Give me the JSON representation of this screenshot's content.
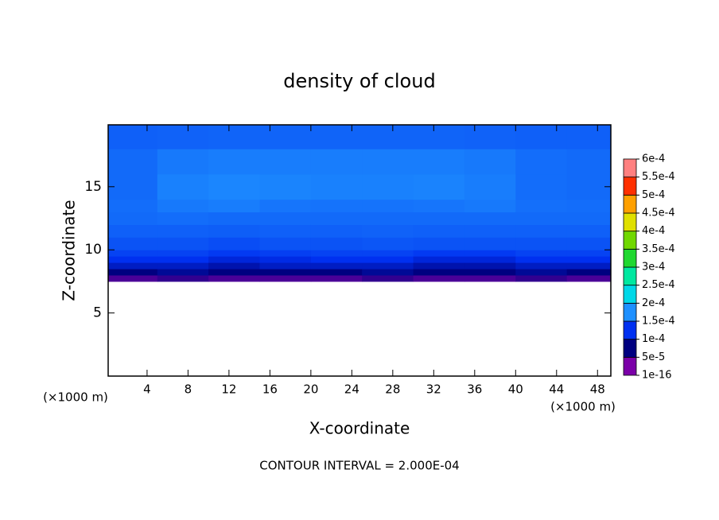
{
  "chart_data": {
    "type": "contour",
    "title": "density of cloud",
    "x_label": "X-coordinate",
    "y_label": "Z-coordinate",
    "x_unit_label": "(×1000 m)",
    "y_unit_label": "(×1000 m)",
    "annotation": "CONTOUR INTERVAL = 2.000E-04",
    "xlim": [
      0.2,
      49.3
    ],
    "ylim": [
      0,
      19.9
    ],
    "xticks": [
      4,
      8,
      12,
      16,
      20,
      24,
      28,
      32,
      36,
      40,
      44,
      48
    ],
    "yticks": [
      5,
      10,
      15
    ],
    "x_edges": [
      0,
      5,
      10,
      15,
      20,
      25,
      30,
      35,
      40,
      45,
      50
    ],
    "z_edges": [
      7.5,
      8,
      8.5,
      9,
      9.5,
      10,
      11,
      12,
      13,
      14,
      16,
      18,
      20
    ],
    "values": [
      [
        2e-05,
        3e-05,
        2e-05,
        2e-05,
        2e-05,
        3e-05,
        2e-05,
        2e-05,
        3e-05,
        2e-05
      ],
      [
        5e-05,
        6e-05,
        5e-05,
        5e-05,
        5e-05,
        6e-05,
        5e-05,
        5e-05,
        6e-05,
        5e-05
      ],
      [
        8e-05,
        8e-05,
        7e-05,
        8e-05,
        8e-05,
        8e-05,
        7e-05,
        7e-05,
        8e-05,
        8e-05
      ],
      [
        0.0001,
        0.0001,
        9e-05,
        9.5e-05,
        0.0001,
        0.0001,
        9e-05,
        9e-05,
        0.0001,
        0.0001
      ],
      [
        0.00011,
        0.00011,
        0.000105,
        0.000108,
        0.00011,
        0.00011,
        0.000105,
        0.000105,
        0.00011,
        0.00011
      ],
      [
        0.000118,
        0.000118,
        0.000115,
        0.000118,
        0.000118,
        0.00012,
        0.000118,
        0.000118,
        0.000118,
        0.000118
      ],
      [
        0.000125,
        0.000125,
        0.000124,
        0.000125,
        0.000125,
        0.000126,
        0.000125,
        0.000125,
        0.000125,
        0.000125
      ],
      [
        0.00013,
        0.000132,
        0.00013,
        0.00013,
        0.00013,
        0.00013,
        0.00013,
        0.00013,
        0.00013,
        0.00013
      ],
      [
        0.000132,
        0.000138,
        0.00014,
        0.000136,
        0.000135,
        0.000135,
        0.000136,
        0.000138,
        0.000133,
        0.000132
      ],
      [
        0.00013,
        0.000142,
        0.000145,
        0.000144,
        0.000142,
        0.000142,
        0.000143,
        0.00014,
        0.000132,
        0.00013
      ],
      [
        0.00013,
        0.000138,
        0.00014,
        0.00014,
        0.00014,
        0.00014,
        0.00014,
        0.000138,
        0.000132,
        0.00013
      ],
      [
        0.000125,
        0.000126,
        0.000127,
        0.000127,
        0.000127,
        0.000127,
        0.000127,
        0.000126,
        0.000125,
        0.000125
      ]
    ],
    "colorbar": {
      "levels": [
        {
          "value": 1e-16,
          "label": "1e-16"
        },
        {
          "value": 5e-05,
          "label": "5e-5"
        },
        {
          "value": 0.0001,
          "label": "1e-4"
        },
        {
          "value": 0.00015,
          "label": "1.5e-4"
        },
        {
          "value": 0.0002,
          "label": "2e-4"
        },
        {
          "value": 0.00025,
          "label": "2.5e-4"
        },
        {
          "value": 0.0003,
          "label": "3e-4"
        },
        {
          "value": 0.00035,
          "label": "3.5e-4"
        },
        {
          "value": 0.0004,
          "label": "4e-4"
        },
        {
          "value": 0.00045,
          "label": "4.5e-4"
        },
        {
          "value": 0.0005,
          "label": "5e-4"
        },
        {
          "value": 0.00055,
          "label": "5.5e-4"
        },
        {
          "value": 0.0006,
          "label": "6e-4"
        }
      ],
      "colors": [
        "#7b00a8",
        "#000080",
        "#0030f0",
        "#1e90ff",
        "#00d8e8",
        "#00e8a0",
        "#20d830",
        "#70d800",
        "#e0e000",
        "#ffa000",
        "#ff3000",
        "#ff8080"
      ]
    }
  }
}
